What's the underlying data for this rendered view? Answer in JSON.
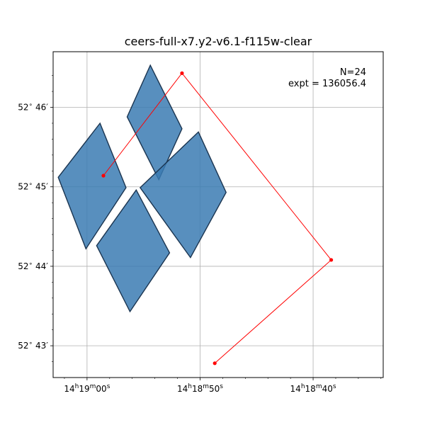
{
  "chart_data": {
    "type": "scatter",
    "title": "ceers-full-x7.y2-v6.1-f115w-clear",
    "xlabel": "",
    "ylabel": "",
    "grid": true,
    "x_units": "RA (seconds of 14h18m, increasing to the left)",
    "y_units": "Dec (arcminutes of 52°)",
    "xlim": [
      63.0,
      33.8
    ],
    "ylim": [
      42.6,
      46.7
    ],
    "x_ticks": [
      {
        "value": 60,
        "hours": "14",
        "minutes": "19",
        "seconds": "00"
      },
      {
        "value": 50,
        "hours": "14",
        "minutes": "18",
        "seconds": "50"
      },
      {
        "value": 40,
        "hours": "14",
        "minutes": "18",
        "seconds": "40"
      }
    ],
    "y_ticks": [
      {
        "value": 46,
        "degrees": "52",
        "arcmin": "46"
      },
      {
        "value": 45,
        "degrees": "52",
        "arcmin": "45"
      },
      {
        "value": 44,
        "degrees": "52",
        "arcmin": "44"
      },
      {
        "value": 43,
        "degrees": "52",
        "arcmin": "43"
      }
    ],
    "annotations": [
      "N=24",
      "expt = 136056.4"
    ],
    "footprints": [
      {
        "name": "upper",
        "color": "#3b7bb3",
        "corners": [
          [
            56.45,
            45.88
          ],
          [
            54.4,
            46.53
          ],
          [
            51.6,
            45.73
          ],
          [
            53.65,
            45.09
          ]
        ]
      },
      {
        "name": "left",
        "color": "#3b7bb3",
        "corners": [
          [
            62.55,
            45.12
          ],
          [
            58.85,
            45.8
          ],
          [
            56.55,
            44.99
          ],
          [
            60.1,
            44.22
          ]
        ]
      },
      {
        "name": "right",
        "color": "#3b7bb3",
        "corners": [
          [
            55.3,
            44.99
          ],
          [
            50.15,
            45.69
          ],
          [
            47.7,
            44.93
          ],
          [
            50.85,
            44.11
          ]
        ]
      },
      {
        "name": "lower",
        "color": "#3b7bb3",
        "corners": [
          [
            59.15,
            44.26
          ],
          [
            55.65,
            44.96
          ],
          [
            52.7,
            44.17
          ],
          [
            56.2,
            43.43
          ]
        ]
      }
    ],
    "series": [
      {
        "color": "#ff0000",
        "points": [
          [
            58.55,
            45.14
          ],
          [
            51.6,
            46.43
          ],
          [
            38.4,
            44.08
          ],
          [
            48.7,
            42.78
          ]
        ]
      }
    ]
  }
}
